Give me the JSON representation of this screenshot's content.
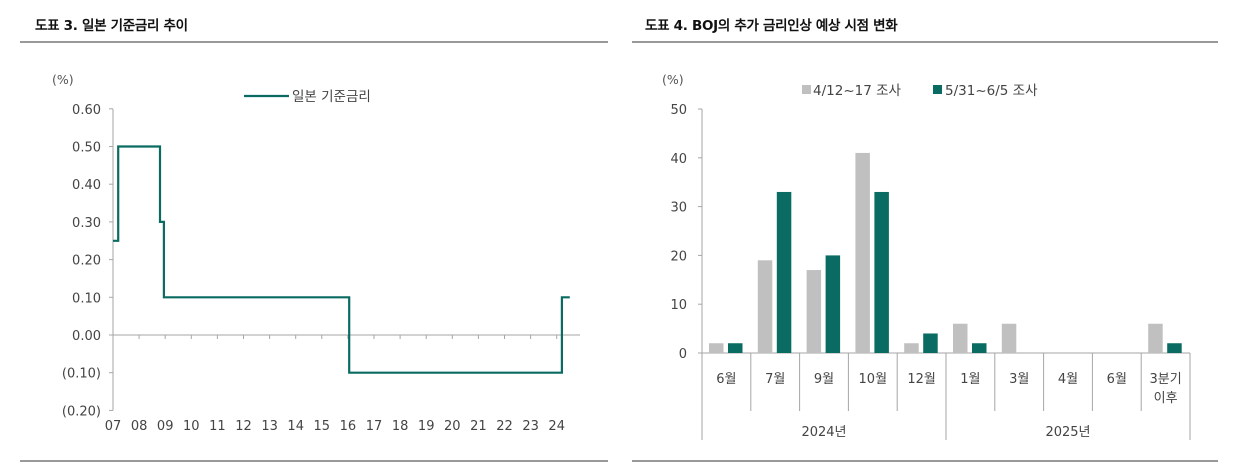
{
  "left": {
    "title": "도표 3. 일본 기준금리 추이",
    "unit": "(%)",
    "legend": "일본 기준금리",
    "y_ticks": [
      "0.60",
      "0.50",
      "0.40",
      "0.30",
      "0.20",
      "0.10",
      "0.00",
      "(0.10)",
      "(0.20)"
    ],
    "x_ticks": [
      "07",
      "08",
      "09",
      "10",
      "11",
      "12",
      "13",
      "14",
      "15",
      "16",
      "17",
      "18",
      "19",
      "20",
      "21",
      "22",
      "23",
      "24"
    ]
  },
  "right": {
    "title": "도표 4. BOJ의 추가 금리인상 예상 시점 변화",
    "unit": "(%)",
    "legend": [
      "4/12~17 조사",
      "5/31~6/5 조사"
    ],
    "y_ticks": [
      "50",
      "40",
      "30",
      "20",
      "10",
      "0"
    ],
    "categories": [
      "6월",
      "7월",
      "9월",
      "10월",
      "12월",
      "1월",
      "3월",
      "4월",
      "6월",
      "3분기 이후"
    ],
    "groups": [
      "2024년",
      "2025년"
    ]
  },
  "colors": {
    "teal": "#0a6b62",
    "gray": "#c0c0c0",
    "axis": "#a6a6a6",
    "rule": "#999999"
  },
  "chart_data": [
    {
      "type": "line",
      "title": "도표 3. 일본 기준금리 추이",
      "xlabel": "",
      "ylabel": "(%)",
      "ylim": [
        -0.2,
        0.6
      ],
      "legend": [
        "일본 기준금리"
      ],
      "step": true,
      "x": [
        2007.0,
        2007.2,
        2007.2,
        2008.8,
        2008.8,
        2008.95,
        2008.95,
        2016.05,
        2016.05,
        2024.2,
        2024.2,
        2024.5
      ],
      "series": [
        {
          "name": "일본 기준금리",
          "values": [
            0.25,
            0.25,
            0.5,
            0.5,
            0.3,
            0.3,
            0.1,
            0.1,
            -0.1,
            -0.1,
            0.1,
            0.1
          ]
        }
      ],
      "x_tick_labels": [
        "07",
        "08",
        "09",
        "10",
        "11",
        "12",
        "13",
        "14",
        "15",
        "16",
        "17",
        "18",
        "19",
        "20",
        "21",
        "22",
        "23",
        "24"
      ],
      "y_tick_labels": [
        "0.60",
        "0.50",
        "0.40",
        "0.30",
        "0.20",
        "0.10",
        "0.00",
        "(0.10)",
        "(0.20)"
      ],
      "grid": false,
      "legend_position": "top-right"
    },
    {
      "type": "bar",
      "title": "도표 4. BOJ의 추가 금리인상 예상 시점 변화",
      "xlabel": "",
      "ylabel": "(%)",
      "ylim": [
        0,
        50
      ],
      "categories": [
        "6월",
        "7월",
        "9월",
        "10월",
        "12월",
        "1월",
        "3월",
        "4월",
        "6월",
        "3분기 이후"
      ],
      "category_groups": [
        {
          "label": "2024년",
          "span": [
            0,
            4
          ]
        },
        {
          "label": "2025년",
          "span": [
            5,
            9
          ]
        }
      ],
      "series": [
        {
          "name": "4/12~17 조사",
          "values": [
            2,
            19,
            17,
            41,
            2,
            6,
            6,
            0,
            0,
            6
          ]
        },
        {
          "name": "5/31~6/5 조사",
          "values": [
            2,
            33,
            20,
            33,
            4,
            2,
            0,
            0,
            0,
            2
          ]
        }
      ],
      "y_tick_labels": [
        "0",
        "10",
        "20",
        "30",
        "40",
        "50"
      ],
      "grid": false,
      "legend_position": "top"
    }
  ]
}
